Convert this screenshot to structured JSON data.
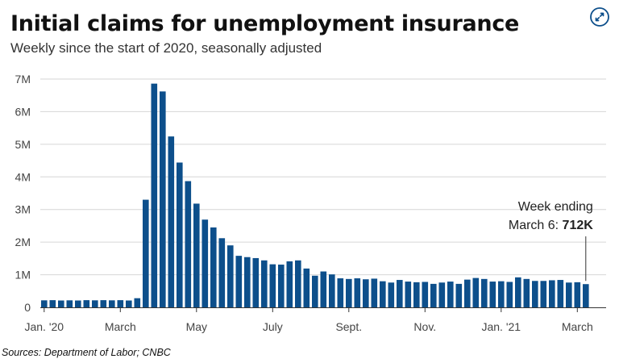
{
  "chart_data": {
    "type": "bar",
    "title": "Initial claims for unemployment insurance",
    "subtitle": "Weekly since the start of 2020, seasonally adjusted",
    "ylim": [
      0,
      7000000
    ],
    "y_ticks": [
      {
        "value": 0,
        "label": "0"
      },
      {
        "value": 1000000,
        "label": "1M"
      },
      {
        "value": 2000000,
        "label": "2M"
      },
      {
        "value": 3000000,
        "label": "3M"
      },
      {
        "value": 4000000,
        "label": "4M"
      },
      {
        "value": 5000000,
        "label": "5M"
      },
      {
        "value": 6000000,
        "label": "6M"
      },
      {
        "value": 7000000,
        "label": "7M"
      }
    ],
    "x_ticks": [
      {
        "index": 0,
        "label": "Jan. '20"
      },
      {
        "index": 9,
        "label": "March"
      },
      {
        "index": 18,
        "label": "May"
      },
      {
        "index": 27,
        "label": "July"
      },
      {
        "index": 36,
        "label": "Sept."
      },
      {
        "index": 45,
        "label": "Nov."
      },
      {
        "index": 54,
        "label": "Jan. '21"
      },
      {
        "index": 63,
        "label": "March"
      }
    ],
    "values": [
      215000,
      220000,
      210000,
      215000,
      210000,
      220000,
      215000,
      220000,
      215000,
      220000,
      210000,
      280000,
      3300000,
      6860000,
      6620000,
      5240000,
      4440000,
      3870000,
      3180000,
      2690000,
      2450000,
      2120000,
      1900000,
      1580000,
      1540000,
      1510000,
      1440000,
      1320000,
      1310000,
      1410000,
      1440000,
      1190000,
      970000,
      1100000,
      1010000,
      890000,
      870000,
      890000,
      860000,
      880000,
      800000,
      760000,
      840000,
      790000,
      770000,
      780000,
      720000,
      760000,
      790000,
      720000,
      850000,
      900000,
      870000,
      790000,
      800000,
      780000,
      920000,
      870000,
      810000,
      810000,
      830000,
      840000,
      760000,
      770000,
      712000
    ],
    "bar_color": "#0d4f8b",
    "grid": true,
    "annotation": {
      "line1": "Week ending",
      "line2_prefix": "March 6: ",
      "line2_value": "712K",
      "bar_index": 64
    },
    "source": "Sources:  Department of Labor; CNBC"
  },
  "header": {
    "expand_icon": "expand-arrows-icon"
  }
}
